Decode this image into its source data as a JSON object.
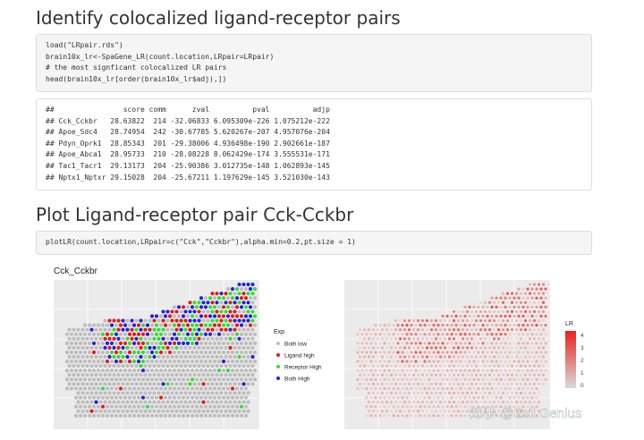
{
  "heading1": "Identify colocalized ligand-receptor pairs",
  "code1": [
    "load(\"LRpair.rds\")",
    "brain10x_lr<-SpaGene_LR(count.location,LRpair=LRpair)",
    "# the most signficant colocalized LR pairs",
    "head(brain10x_lr[order(brain10x_lr$adj),])"
  ],
  "output1": [
    "##                score comm      zval          pval          adjp",
    "## Cck_Cckbr   28.63822  214 -32.06833 6.095309e-226 1.075212e-222",
    "## Apoe_Sdc4   28.74954  242 -30.67785 5.620267e-207 4.957076e-204",
    "## Pdyn_Oprk1  28.85343  201 -29.38006 4.936498e-190 2.902661e-187",
    "## Apoe_Abca1  28.95733  210 -28.08228 8.062429e-174 3.555531e-171",
    "## Tac1_Tacr1  29.13173  204 -25.90386 3.012735e-148 1.062893e-145",
    "## Nptx1_Nptxr 29.15028  204 -25.67211 1.197629e-145 3.521030e-143"
  ],
  "heading2": "Plot Ligand-receptor pair Cck-Cckbr",
  "code2": [
    "plotLR(count.location,LRpair=c(\"Cck\",\"Cckbr\"),alpha.min=0.2,pt.size = 1)"
  ],
  "plot": {
    "title": "Cck_Cckbr",
    "legend_title": "Exp",
    "legend": [
      "Both low",
      "Ligand high",
      "Receptor High",
      "Both High"
    ],
    "colorbar_title": "LR",
    "colorbar_ticks": [
      "4",
      "3",
      "2",
      "1",
      "0"
    ]
  },
  "watermark": "知乎 @Evil Genius"
}
